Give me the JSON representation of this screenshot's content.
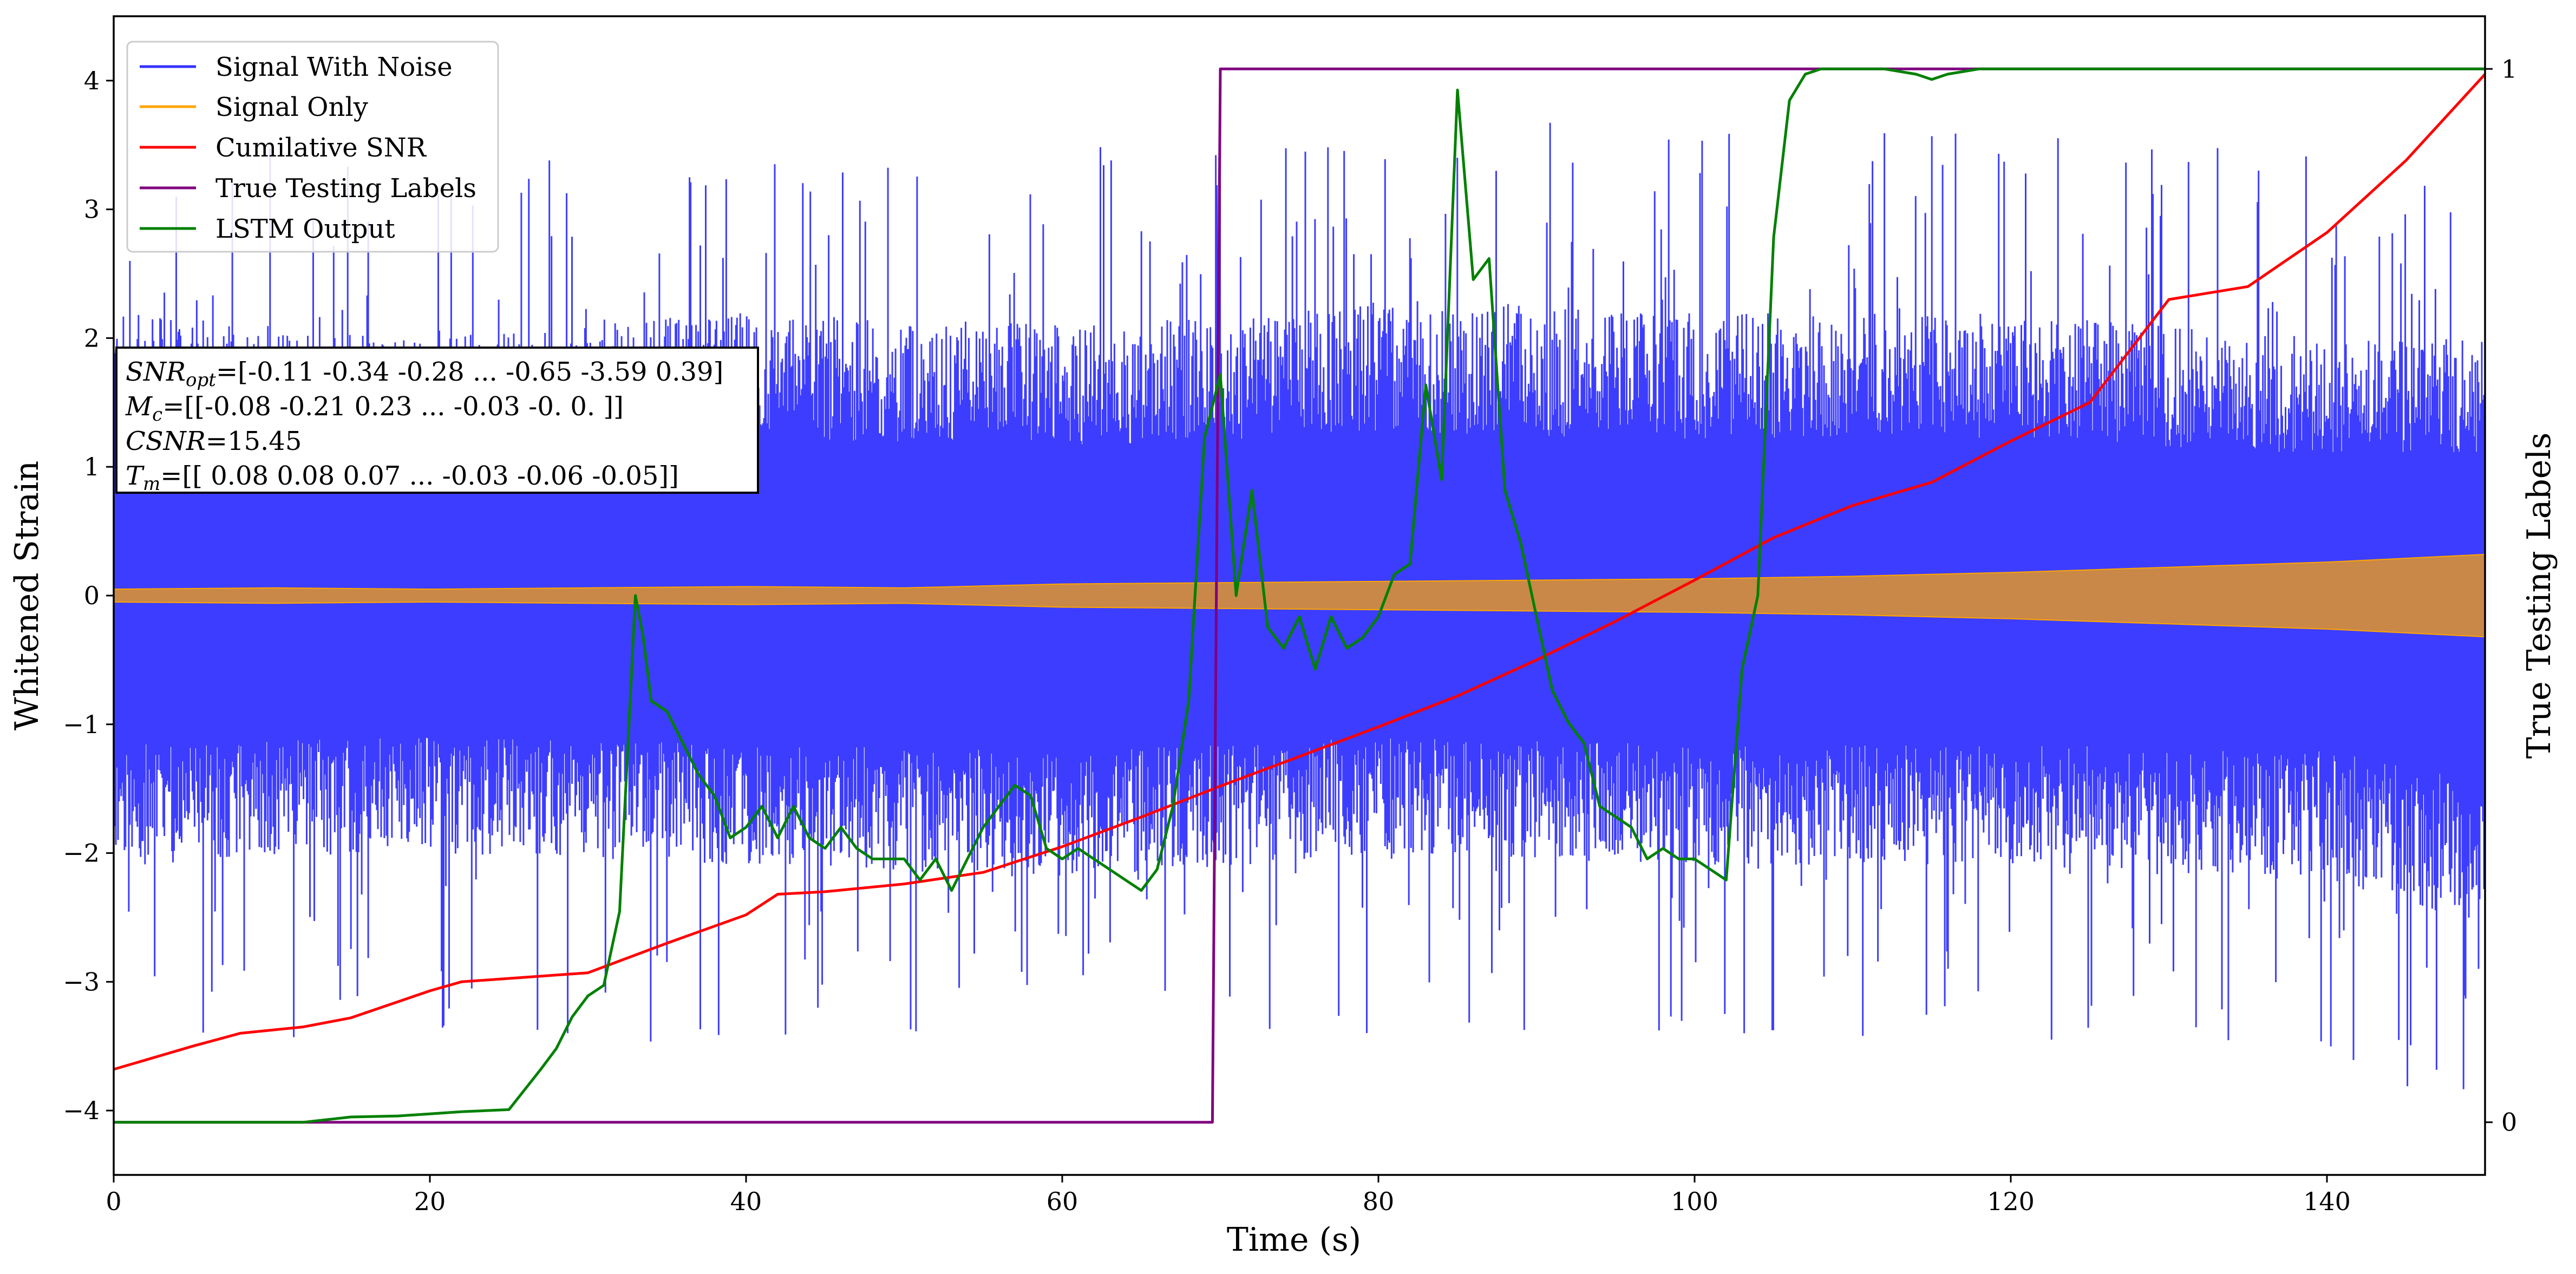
{
  "chart_data": {
    "type": "line",
    "title": "",
    "xlabel": "Time (s)",
    "ylabel": "Whitened Strain",
    "y2label": "True Testing Labels",
    "xlim": [
      0,
      150
    ],
    "ylim": [
      -4.5,
      4.5
    ],
    "y2lim": [
      -0.05,
      1.05
    ],
    "xticks": [
      "0",
      "20",
      "40",
      "60",
      "80",
      "100",
      "120",
      "140"
    ],
    "yticks": [
      "−4",
      "−3",
      "−2",
      "−1",
      "0",
      "1",
      "2",
      "3",
      "4"
    ],
    "y2ticks": [
      "0",
      "1"
    ],
    "grid": false,
    "legend_position": "top-left",
    "annotation": {
      "line1": {
        "sym": "SNR",
        "sub": "opt",
        "rest": "=[-0.11 -0.34 -0.28 ... -0.65 -3.59  0.39]"
      },
      "line2": {
        "sym": "M",
        "sub": "c",
        "rest": "=[[-0.08 -0.21  0.23 ... -0.03 -0.    0.  ]]"
      },
      "line3": {
        "sym": "CSNR",
        "rest": "=15.45"
      },
      "line4": {
        "sym": "T",
        "sub": "m",
        "rest": "=[[ 0.08  0.08  0.07 ... -0.03 -0.06 -0.05]]"
      }
    },
    "series": [
      {
        "name": "Signal With Noise",
        "color": "#3333ff",
        "axis": "left",
        "style": "noise",
        "envelope": {
          "x": [
            0,
            20,
            40,
            60,
            80,
            100,
            120,
            140,
            150
          ],
          "upper": [
            2.2,
            2.0,
            2.2,
            2.1,
            2.3,
            2.2,
            2.2,
            2.0,
            2.0
          ],
          "lower": [
            -2.1,
            -2.0,
            -2.1,
            -2.2,
            -2.0,
            -2.1,
            -2.1,
            -2.2,
            -2.6
          ]
        }
      },
      {
        "name": "Signal Only",
        "color": "#ffa500",
        "axis": "left",
        "style": "band",
        "x": [
          0,
          10,
          20,
          30,
          40,
          50,
          60,
          70,
          80,
          90,
          100,
          110,
          120,
          130,
          140,
          150
        ],
        "amplitude": [
          0.05,
          0.06,
          0.05,
          0.06,
          0.07,
          0.06,
          0.09,
          0.1,
          0.11,
          0.12,
          0.13,
          0.15,
          0.18,
          0.22,
          0.26,
          0.32
        ]
      },
      {
        "name": "Cumilative SNR",
        "color": "#ff0000",
        "axis": "left",
        "x": [
          0,
          5,
          8,
          12,
          15,
          20,
          22,
          30,
          35,
          40,
          42,
          45,
          50,
          55,
          60,
          65,
          70,
          75,
          80,
          85,
          90,
          95,
          100,
          105,
          110,
          115,
          120,
          125,
          130,
          135,
          140,
          145,
          150
        ],
        "y": [
          -3.68,
          -3.5,
          -3.4,
          -3.35,
          -3.28,
          -3.07,
          -3.0,
          -2.93,
          -2.7,
          -2.48,
          -2.32,
          -2.3,
          -2.24,
          -2.15,
          -1.95,
          -1.72,
          -1.48,
          -1.25,
          -1.02,
          -0.78,
          -0.5,
          -0.2,
          0.12,
          0.45,
          0.7,
          0.88,
          1.2,
          1.5,
          2.3,
          2.4,
          2.82,
          3.38,
          4.05
        ]
      },
      {
        "name": "True Testing Labels",
        "color": "#800080",
        "axis": "right",
        "x": [
          0,
          69.5,
          70.0,
          150
        ],
        "y": [
          0,
          0,
          1,
          1
        ]
      },
      {
        "name": "LSTM Output",
        "color": "#008000",
        "axis": "right",
        "x": [
          0,
          12,
          15,
          18,
          20,
          22,
          25,
          27,
          28,
          29,
          30,
          31,
          32,
          33,
          33.5,
          34,
          35,
          36,
          37,
          38,
          39,
          40,
          41,
          42,
          43,
          44,
          45,
          46,
          47,
          48,
          49,
          50,
          51,
          52,
          53,
          54,
          55,
          56,
          57,
          58,
          59,
          60,
          61,
          62,
          63,
          64,
          65,
          66,
          67,
          68,
          69,
          70,
          71,
          72,
          73,
          74,
          75,
          76,
          77,
          78,
          79,
          80,
          81,
          82,
          83,
          84,
          85,
          86,
          87,
          88,
          89,
          90,
          91,
          92,
          93,
          94,
          95,
          96,
          97,
          98,
          99,
          100,
          101,
          102,
          103,
          104,
          105,
          106,
          107,
          108,
          110,
          112,
          114,
          115,
          116,
          118,
          120,
          130,
          140,
          150
        ],
        "y": [
          0,
          0,
          0.005,
          0.006,
          0.008,
          0.01,
          0.012,
          0.05,
          0.07,
          0.1,
          0.12,
          0.13,
          0.2,
          0.5,
          0.46,
          0.4,
          0.39,
          0.36,
          0.33,
          0.31,
          0.27,
          0.28,
          0.3,
          0.27,
          0.3,
          0.27,
          0.26,
          0.28,
          0.26,
          0.25,
          0.25,
          0.25,
          0.23,
          0.25,
          0.22,
          0.25,
          0.28,
          0.3,
          0.32,
          0.31,
          0.26,
          0.25,
          0.26,
          0.25,
          0.24,
          0.23,
          0.22,
          0.24,
          0.3,
          0.4,
          0.65,
          0.71,
          0.5,
          0.6,
          0.47,
          0.45,
          0.48,
          0.43,
          0.48,
          0.45,
          0.46,
          0.48,
          0.52,
          0.53,
          0.7,
          0.61,
          0.98,
          0.8,
          0.82,
          0.6,
          0.55,
          0.48,
          0.41,
          0.38,
          0.36,
          0.3,
          0.29,
          0.28,
          0.25,
          0.26,
          0.25,
          0.25,
          0.24,
          0.23,
          0.43,
          0.5,
          0.84,
          0.97,
          0.995,
          1.0,
          1.0,
          1.0,
          0.995,
          0.99,
          0.995,
          1.0,
          1.0,
          1.0,
          1.0,
          1.0
        ]
      }
    ]
  }
}
